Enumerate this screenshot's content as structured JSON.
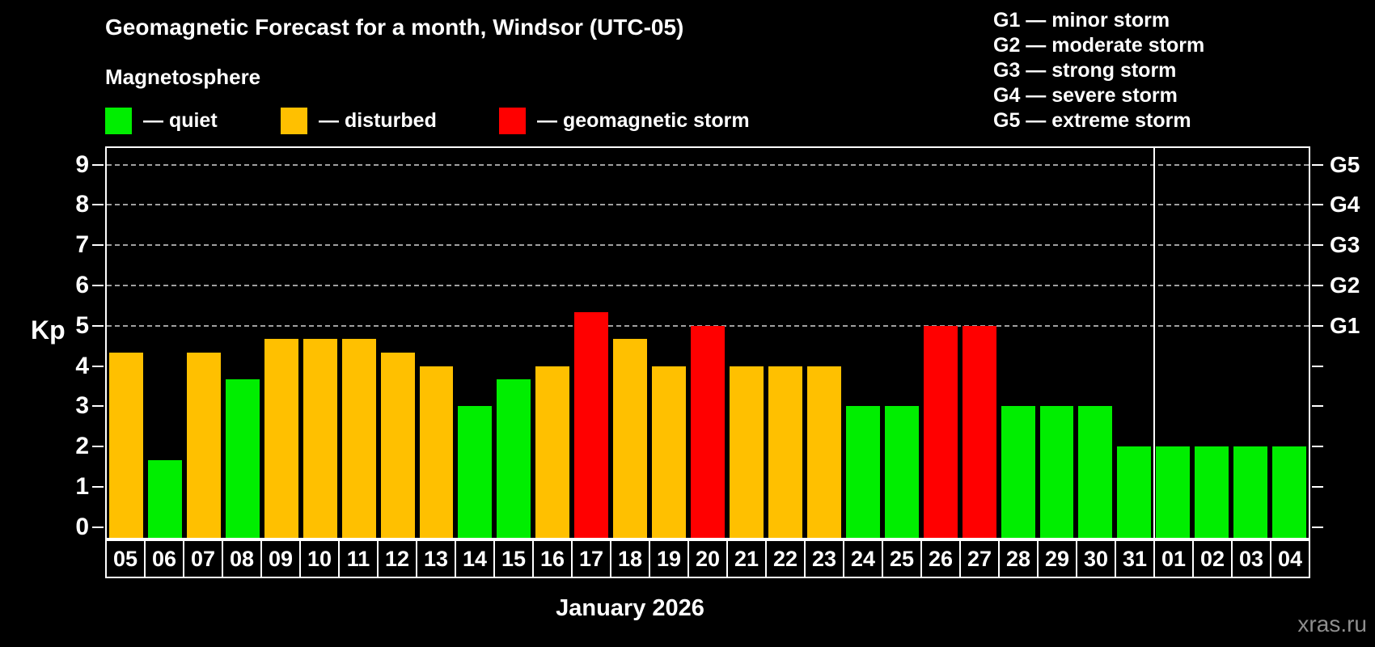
{
  "title": "Geomagnetic Forecast for a month, Windsor (UTC-05)",
  "subtitle": "Magnetosphere",
  "legend": {
    "items": [
      {
        "key": "quiet",
        "label": "— quiet"
      },
      {
        "key": "disturbed",
        "label": "— disturbed"
      },
      {
        "key": "storm",
        "label": "— geomagnetic storm"
      }
    ]
  },
  "g_legend": [
    "G1 — minor storm",
    "G2 — moderate storm",
    "G3 — strong storm",
    "G4 — severe storm",
    "G5 — extreme storm"
  ],
  "watermark": "xras.ru",
  "colors": {
    "quiet": "#00EE00",
    "disturbed": "#FFC000",
    "storm": "#FF0000",
    "background": "#000000",
    "grid": "#A0A0A0",
    "axis": "#FFFFFF",
    "watermark": "#8E8E8E"
  },
  "chart_data": {
    "type": "bar",
    "title": "Geomagnetic Forecast for a month, Windsor (UTC-05)",
    "ylabel": "Kp",
    "xlabel": "January 2026",
    "ylim": [
      0,
      9.4
    ],
    "yticks": [
      0,
      1,
      2,
      3,
      4,
      5,
      6,
      7,
      8,
      9
    ],
    "gridlines_at": [
      5,
      6,
      7,
      8,
      9
    ],
    "grid": true,
    "legend_position": "top-left",
    "right_axis_labels": [
      {
        "kp": 5,
        "label": "G1"
      },
      {
        "kp": 6,
        "label": "G2"
      },
      {
        "kp": 7,
        "label": "G3"
      },
      {
        "kp": 8,
        "label": "G4"
      },
      {
        "kp": 9,
        "label": "G5"
      }
    ],
    "month_separator_after_index": 26,
    "categories": [
      "05",
      "06",
      "07",
      "08",
      "09",
      "10",
      "11",
      "12",
      "13",
      "14",
      "15",
      "16",
      "17",
      "18",
      "19",
      "20",
      "21",
      "22",
      "23",
      "24",
      "25",
      "26",
      "27",
      "28",
      "29",
      "30",
      "31",
      "01",
      "02",
      "03",
      "04"
    ],
    "values": [
      4.33,
      1.67,
      4.33,
      3.67,
      4.67,
      4.67,
      4.67,
      4.33,
      4.0,
      3.0,
      3.67,
      4.0,
      5.33,
      4.67,
      4.0,
      5.0,
      4.0,
      4.0,
      4.0,
      3.0,
      3.0,
      5.0,
      5.0,
      3.0,
      3.0,
      3.0,
      2.0,
      2.0,
      2.0,
      2.0,
      2.0
    ],
    "statuses": [
      "disturbed",
      "quiet",
      "disturbed",
      "quiet",
      "disturbed",
      "disturbed",
      "disturbed",
      "disturbed",
      "disturbed",
      "quiet",
      "quiet",
      "disturbed",
      "storm",
      "disturbed",
      "disturbed",
      "storm",
      "disturbed",
      "disturbed",
      "disturbed",
      "quiet",
      "quiet",
      "storm",
      "storm",
      "quiet",
      "quiet",
      "quiet",
      "quiet",
      "quiet",
      "quiet",
      "quiet",
      "quiet"
    ]
  }
}
